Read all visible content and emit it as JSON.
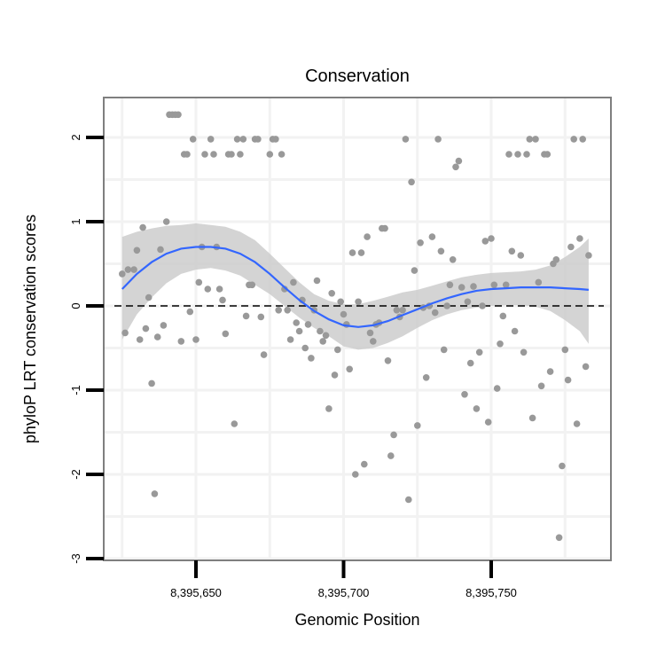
{
  "chart_data": {
    "type": "scatter",
    "title": "Conservation",
    "xlabel": "Genomic Position",
    "ylabel": "phyloP LRT conservation scores",
    "xlim": [
      8395620,
      8395790
    ],
    "ylim": [
      -3,
      2.5
    ],
    "x_ticks": [
      8395650,
      8395700,
      8395750
    ],
    "x_tick_labels": [
      "8,395,650",
      "8,395,700",
      "8,395,750"
    ],
    "y_ticks": [
      -3,
      -2,
      -1,
      0,
      1,
      2
    ],
    "y_tick_labels": [
      "-3",
      "-2",
      "-1",
      "0",
      "1",
      "2"
    ],
    "reference_line": {
      "y": 0,
      "style": "dashed"
    },
    "colors": {
      "points": "#999999",
      "smooth": "#3366ff",
      "band": "#cccccc",
      "frame": "#7f7f7f",
      "grid": "#f2f2f2"
    },
    "points": [
      [
        8395625,
        0.38
      ],
      [
        8395626,
        -0.32
      ],
      [
        8395627,
        0.43
      ],
      [
        8395629,
        0.43
      ],
      [
        8395630,
        0.66
      ],
      [
        8395631,
        -0.4
      ],
      [
        8395632,
        0.93
      ],
      [
        8395633,
        -0.27
      ],
      [
        8395634,
        0.1
      ],
      [
        8395635,
        -0.92
      ],
      [
        8395636,
        -2.23
      ],
      [
        8395637,
        -0.37
      ],
      [
        8395638,
        0.67
      ],
      [
        8395639,
        -0.23
      ],
      [
        8395640,
        1.0
      ],
      [
        8395641,
        2.27
      ],
      [
        8395642,
        2.27
      ],
      [
        8395643,
        2.27
      ],
      [
        8395644,
        2.27
      ],
      [
        8395645,
        -0.42
      ],
      [
        8395646,
        1.8
      ],
      [
        8395647,
        1.8
      ],
      [
        8395648,
        -0.07
      ],
      [
        8395649,
        1.98
      ],
      [
        8395650,
        -0.4
      ],
      [
        8395651,
        0.28
      ],
      [
        8395652,
        0.7
      ],
      [
        8395653,
        1.8
      ],
      [
        8395654,
        0.2
      ],
      [
        8395655,
        1.98
      ],
      [
        8395656,
        1.8
      ],
      [
        8395657,
        0.7
      ],
      [
        8395658,
        0.2
      ],
      [
        8395659,
        0.07
      ],
      [
        8395660,
        -0.33
      ],
      [
        8395661,
        1.8
      ],
      [
        8395662,
        1.8
      ],
      [
        8395663,
        -1.4
      ],
      [
        8395664,
        1.98
      ],
      [
        8395665,
        1.8
      ],
      [
        8395666,
        1.98
      ],
      [
        8395667,
        -0.12
      ],
      [
        8395668,
        0.25
      ],
      [
        8395669,
        0.25
      ],
      [
        8395670,
        1.98
      ],
      [
        8395671,
        1.98
      ],
      [
        8395672,
        -0.13
      ],
      [
        8395673,
        -0.58
      ],
      [
        8395675,
        1.8
      ],
      [
        8395676,
        1.98
      ],
      [
        8395677,
        1.98
      ],
      [
        8395678,
        -0.05
      ],
      [
        8395679,
        1.8
      ],
      [
        8395680,
        0.2
      ],
      [
        8395681,
        -0.05
      ],
      [
        8395682,
        -0.4
      ],
      [
        8395683,
        0.28
      ],
      [
        8395684,
        -0.2
      ],
      [
        8395685,
        -0.3
      ],
      [
        8395686,
        0.07
      ],
      [
        8395687,
        -0.5
      ],
      [
        8395688,
        -0.22
      ],
      [
        8395689,
        -0.62
      ],
      [
        8395690,
        -0.05
      ],
      [
        8395691,
        0.3
      ],
      [
        8395692,
        -0.3
      ],
      [
        8395693,
        -0.42
      ],
      [
        8395694,
        -0.35
      ],
      [
        8395695,
        -1.22
      ],
      [
        8395696,
        0.15
      ],
      [
        8395697,
        -0.82
      ],
      [
        8395698,
        -0.52
      ],
      [
        8395699,
        0.05
      ],
      [
        8395700,
        -0.1
      ],
      [
        8395701,
        -0.22
      ],
      [
        8395702,
        -0.75
      ],
      [
        8395703,
        0.63
      ],
      [
        8395704,
        -2.0
      ],
      [
        8395705,
        0.05
      ],
      [
        8395706,
        0.63
      ],
      [
        8395707,
        -1.88
      ],
      [
        8395708,
        0.82
      ],
      [
        8395709,
        -0.32
      ],
      [
        8395710,
        -0.42
      ],
      [
        8395711,
        -0.22
      ],
      [
        8395712,
        -0.2
      ],
      [
        8395713,
        0.92
      ],
      [
        8395714,
        0.92
      ],
      [
        8395715,
        -0.65
      ],
      [
        8395716,
        -1.78
      ],
      [
        8395717,
        -1.53
      ],
      [
        8395718,
        -0.05
      ],
      [
        8395719,
        -0.13
      ],
      [
        8395720,
        -0.05
      ],
      [
        8395721,
        1.98
      ],
      [
        8395722,
        -2.3
      ],
      [
        8395723,
        1.47
      ],
      [
        8395724,
        0.42
      ],
      [
        8395725,
        -1.42
      ],
      [
        8395726,
        0.75
      ],
      [
        8395727,
        -0.02
      ],
      [
        8395728,
        -0.85
      ],
      [
        8395729,
        0.0
      ],
      [
        8395730,
        0.82
      ],
      [
        8395731,
        -0.08
      ],
      [
        8395732,
        1.98
      ],
      [
        8395733,
        0.65
      ],
      [
        8395734,
        -0.52
      ],
      [
        8395735,
        0.0
      ],
      [
        8395736,
        0.25
      ],
      [
        8395737,
        0.55
      ],
      [
        8395738,
        1.65
      ],
      [
        8395739,
        1.72
      ],
      [
        8395740,
        0.22
      ],
      [
        8395741,
        -1.05
      ],
      [
        8395742,
        0.05
      ],
      [
        8395743,
        -0.68
      ],
      [
        8395744,
        0.23
      ],
      [
        8395745,
        -1.22
      ],
      [
        8395746,
        -0.55
      ],
      [
        8395747,
        0.0
      ],
      [
        8395748,
        0.77
      ],
      [
        8395749,
        -1.38
      ],
      [
        8395750,
        0.8
      ],
      [
        8395751,
        0.25
      ],
      [
        8395752,
        -0.98
      ],
      [
        8395753,
        -0.45
      ],
      [
        8395754,
        -0.12
      ],
      [
        8395755,
        0.25
      ],
      [
        8395756,
        1.8
      ],
      [
        8395757,
        0.65
      ],
      [
        8395758,
        -0.3
      ],
      [
        8395759,
        1.8
      ],
      [
        8395760,
        0.6
      ],
      [
        8395761,
        -0.55
      ],
      [
        8395762,
        1.8
      ],
      [
        8395763,
        1.98
      ],
      [
        8395764,
        -1.33
      ],
      [
        8395765,
        1.98
      ],
      [
        8395766,
        0.28
      ],
      [
        8395767,
        -0.95
      ],
      [
        8395768,
        1.8
      ],
      [
        8395769,
        1.8
      ],
      [
        8395770,
        -0.78
      ],
      [
        8395771,
        0.5
      ],
      [
        8395772,
        0.55
      ],
      [
        8395773,
        -2.75
      ],
      [
        8395774,
        -1.9
      ],
      [
        8395775,
        -0.52
      ],
      [
        8395776,
        -0.88
      ],
      [
        8395777,
        0.7
      ],
      [
        8395778,
        1.98
      ],
      [
        8395779,
        -1.4
      ],
      [
        8395780,
        0.8
      ],
      [
        8395781,
        1.98
      ],
      [
        8395782,
        -0.72
      ],
      [
        8395783,
        0.6
      ]
    ],
    "smooth": [
      [
        8395625,
        0.2
      ],
      [
        8395630,
        0.38
      ],
      [
        8395635,
        0.52
      ],
      [
        8395640,
        0.62
      ],
      [
        8395645,
        0.68
      ],
      [
        8395650,
        0.7
      ],
      [
        8395655,
        0.7
      ],
      [
        8395660,
        0.68
      ],
      [
        8395665,
        0.62
      ],
      [
        8395670,
        0.52
      ],
      [
        8395675,
        0.38
      ],
      [
        8395680,
        0.22
      ],
      [
        8395685,
        0.07
      ],
      [
        8395690,
        -0.06
      ],
      [
        8395695,
        -0.16
      ],
      [
        8395700,
        -0.23
      ],
      [
        8395705,
        -0.25
      ],
      [
        8395710,
        -0.23
      ],
      [
        8395715,
        -0.18
      ],
      [
        8395720,
        -0.11
      ],
      [
        8395725,
        -0.04
      ],
      [
        8395730,
        0.03
      ],
      [
        8395735,
        0.09
      ],
      [
        8395740,
        0.14
      ],
      [
        8395745,
        0.18
      ],
      [
        8395750,
        0.2
      ],
      [
        8395755,
        0.21
      ],
      [
        8395760,
        0.22
      ],
      [
        8395765,
        0.22
      ],
      [
        8395770,
        0.22
      ],
      [
        8395775,
        0.21
      ],
      [
        8395780,
        0.2
      ],
      [
        8395783,
        0.19
      ]
    ],
    "band_upper": [
      [
        8395625,
        0.82
      ],
      [
        8395630,
        0.88
      ],
      [
        8395635,
        0.92
      ],
      [
        8395640,
        0.95
      ],
      [
        8395645,
        0.96
      ],
      [
        8395650,
        0.98
      ],
      [
        8395655,
        0.96
      ],
      [
        8395660,
        0.94
      ],
      [
        8395665,
        0.88
      ],
      [
        8395670,
        0.78
      ],
      [
        8395675,
        0.62
      ],
      [
        8395680,
        0.45
      ],
      [
        8395685,
        0.28
      ],
      [
        8395690,
        0.14
      ],
      [
        8395695,
        0.06
      ],
      [
        8395700,
        0.02
      ],
      [
        8395705,
        0.02
      ],
      [
        8395710,
        0.06
      ],
      [
        8395715,
        0.11
      ],
      [
        8395720,
        0.16
      ],
      [
        8395725,
        0.19
      ],
      [
        8395730,
        0.24
      ],
      [
        8395735,
        0.29
      ],
      [
        8395740,
        0.34
      ],
      [
        8395745,
        0.37
      ],
      [
        8395750,
        0.39
      ],
      [
        8395755,
        0.4
      ],
      [
        8395760,
        0.41
      ],
      [
        8395765,
        0.43
      ],
      [
        8395770,
        0.48
      ],
      [
        8395775,
        0.58
      ],
      [
        8395780,
        0.7
      ],
      [
        8395783,
        0.8
      ]
    ],
    "band_lower": [
      [
        8395625,
        -0.4
      ],
      [
        8395630,
        -0.1
      ],
      [
        8395635,
        0.1
      ],
      [
        8395640,
        0.27
      ],
      [
        8395645,
        0.38
      ],
      [
        8395650,
        0.43
      ],
      [
        8395655,
        0.45
      ],
      [
        8395660,
        0.42
      ],
      [
        8395665,
        0.36
      ],
      [
        8395670,
        0.25
      ],
      [
        8395675,
        0.14
      ],
      [
        8395680,
        0.0
      ],
      [
        8395685,
        -0.14
      ],
      [
        8395690,
        -0.26
      ],
      [
        8395695,
        -0.36
      ],
      [
        8395700,
        -0.48
      ],
      [
        8395705,
        -0.52
      ],
      [
        8395710,
        -0.5
      ],
      [
        8395715,
        -0.44
      ],
      [
        8395720,
        -0.36
      ],
      [
        8395725,
        -0.26
      ],
      [
        8395730,
        -0.17
      ],
      [
        8395735,
        -0.1
      ],
      [
        8395740,
        -0.05
      ],
      [
        8395745,
        -0.02
      ],
      [
        8395750,
        0.0
      ],
      [
        8395755,
        0.01
      ],
      [
        8395760,
        0.01
      ],
      [
        8395765,
        -0.01
      ],
      [
        8395770,
        -0.06
      ],
      [
        8395775,
        -0.17
      ],
      [
        8395780,
        -0.3
      ],
      [
        8395783,
        -0.45
      ]
    ]
  }
}
